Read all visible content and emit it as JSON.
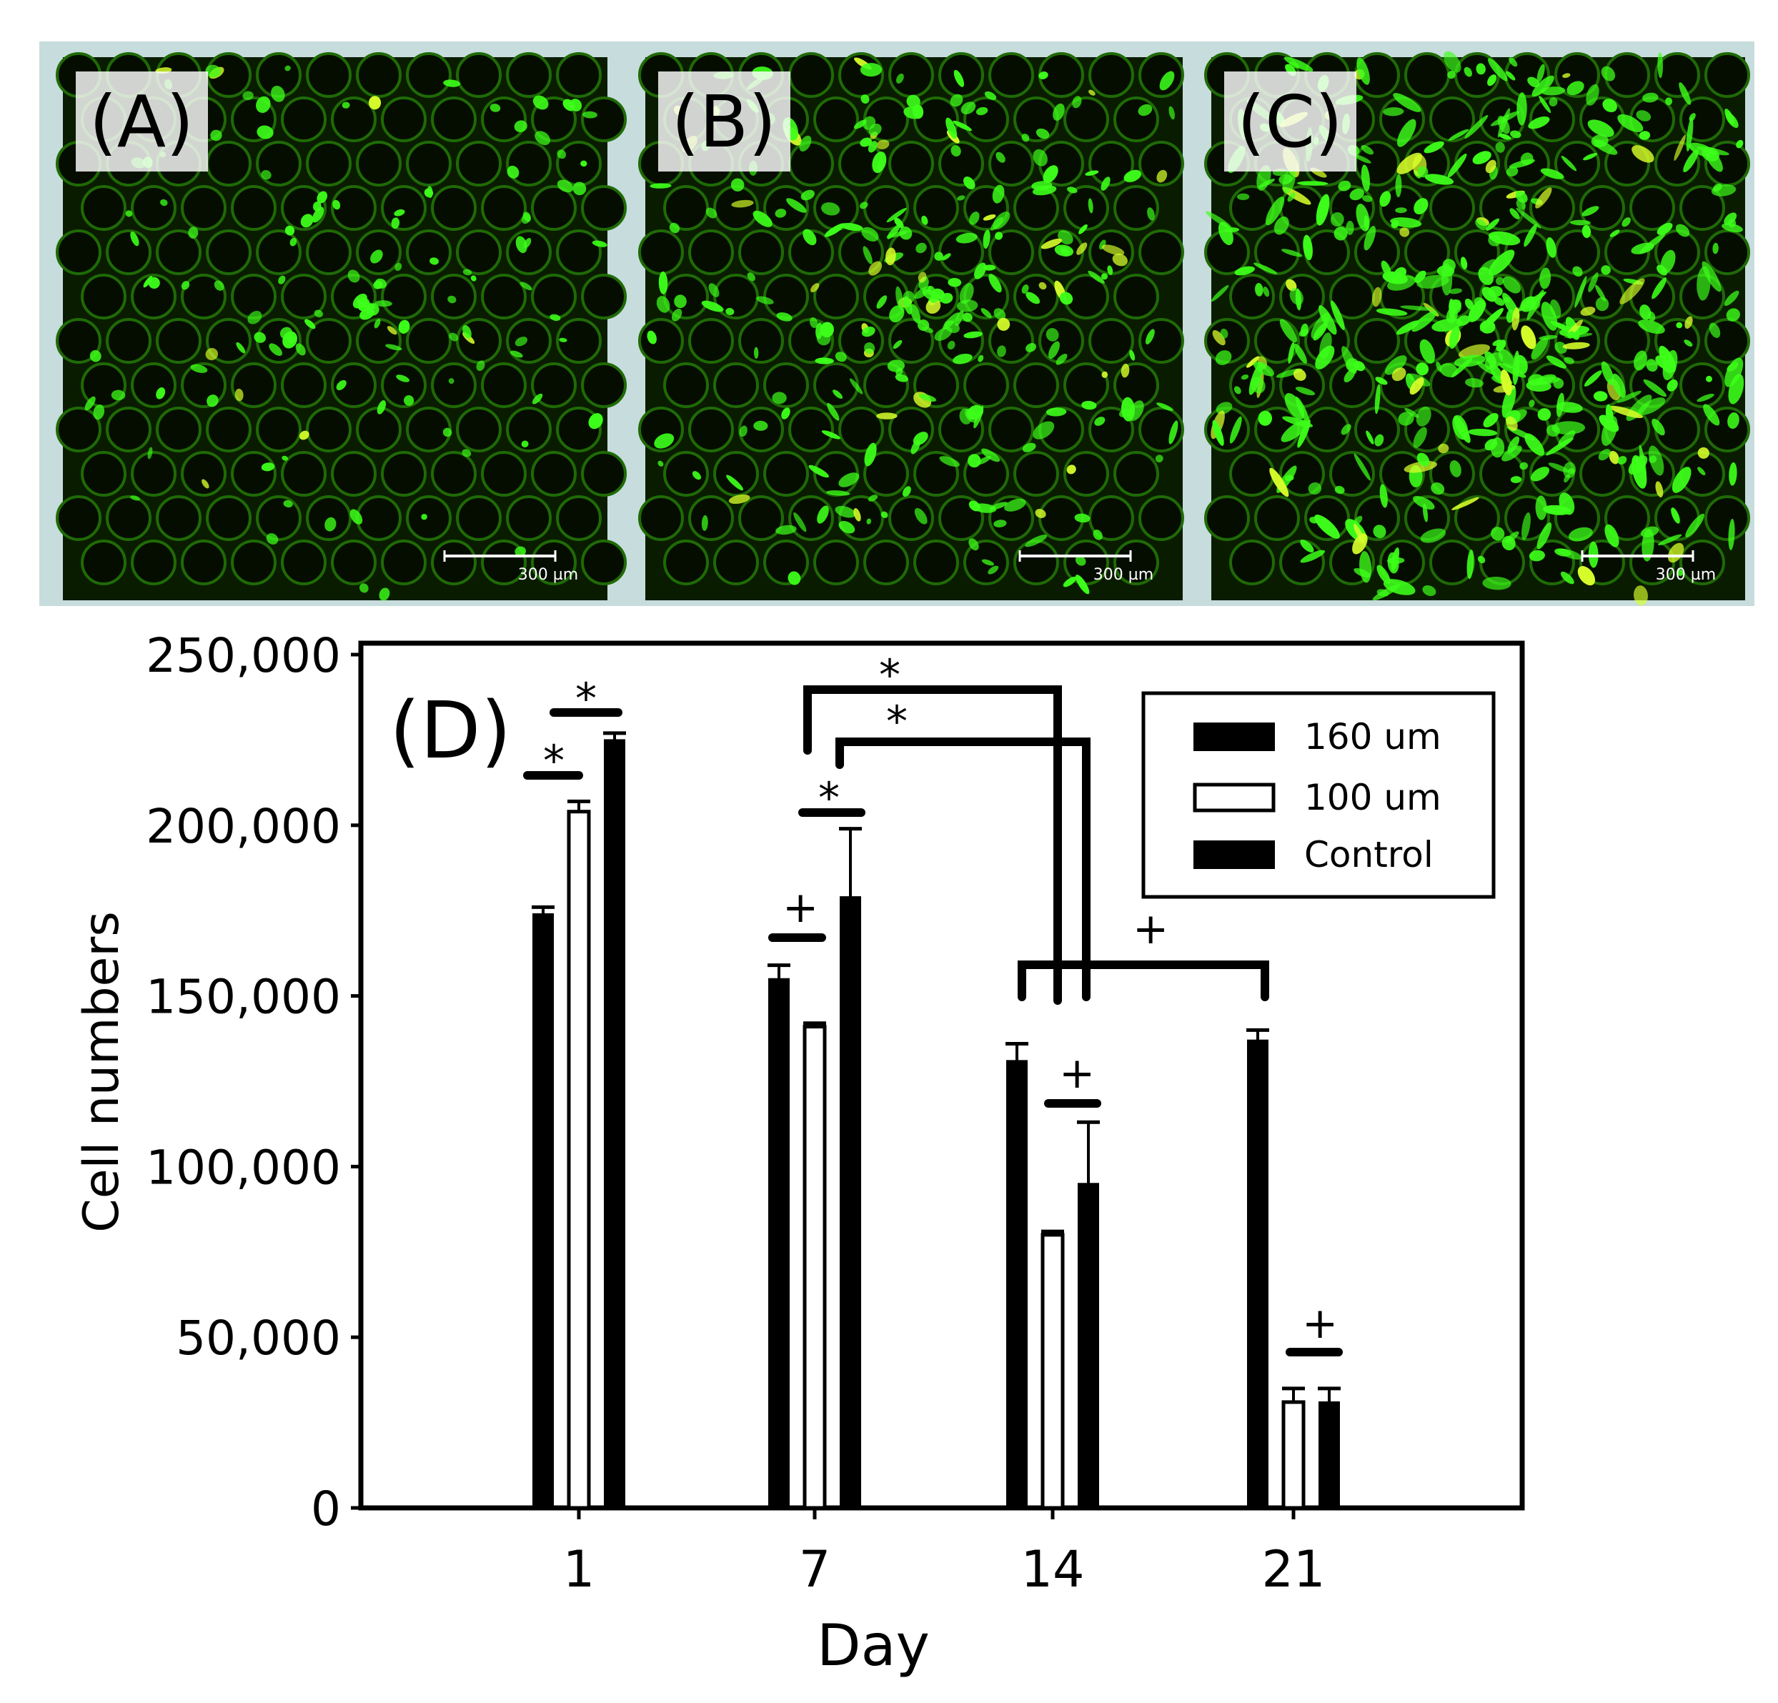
{
  "panels": [
    {
      "label": "(A)",
      "scale_bar": "300 µm",
      "cell_density": 0.15
    },
    {
      "label": "(B)",
      "scale_bar": "300 µm",
      "cell_density": 0.45
    },
    {
      "label": "(C)",
      "scale_bar": "300 µm",
      "cell_density": 0.9
    }
  ],
  "colors": {
    "panel_frame": "#c7dcdc",
    "micrograph_bg": "#0a1c00",
    "cell_green": "#3dff1a",
    "cell_yellow": "#d8ff2a",
    "bar_dark": "#000000",
    "bar_open": "#ffffff"
  },
  "chart_data": {
    "type": "bar",
    "panel_label": "(D)",
    "xlabel": "Day",
    "ylabel": "Cell numbers",
    "categories": [
      "1",
      "7",
      "14",
      "21"
    ],
    "ylim": [
      0,
      250000
    ],
    "yticks": [
      0,
      50000,
      100000,
      150000,
      200000,
      250000
    ],
    "ytick_labels": [
      "0",
      "50,000",
      "100,000",
      "150,000",
      "200,000",
      "250,000"
    ],
    "series": [
      {
        "name": "160 um",
        "fill": "black",
        "values": [
          174000,
          155000,
          131000,
          137000
        ],
        "errors": [
          2000,
          4000,
          5000,
          3000
        ]
      },
      {
        "name": "100 um",
        "fill": "open",
        "values": [
          204000,
          141000,
          80000,
          31000
        ],
        "errors": [
          3000,
          1000,
          1000,
          4000
        ]
      },
      {
        "name": "Control",
        "fill": "black",
        "values": [
          225000,
          179000,
          95000,
          31000
        ],
        "errors": [
          2000,
          20000,
          18000,
          4000
        ]
      }
    ],
    "legend_position": "top-right",
    "grid": false,
    "significance_marks": [
      "*",
      "*",
      "*",
      "+",
      "*",
      "*",
      "+",
      "+",
      "+"
    ]
  }
}
